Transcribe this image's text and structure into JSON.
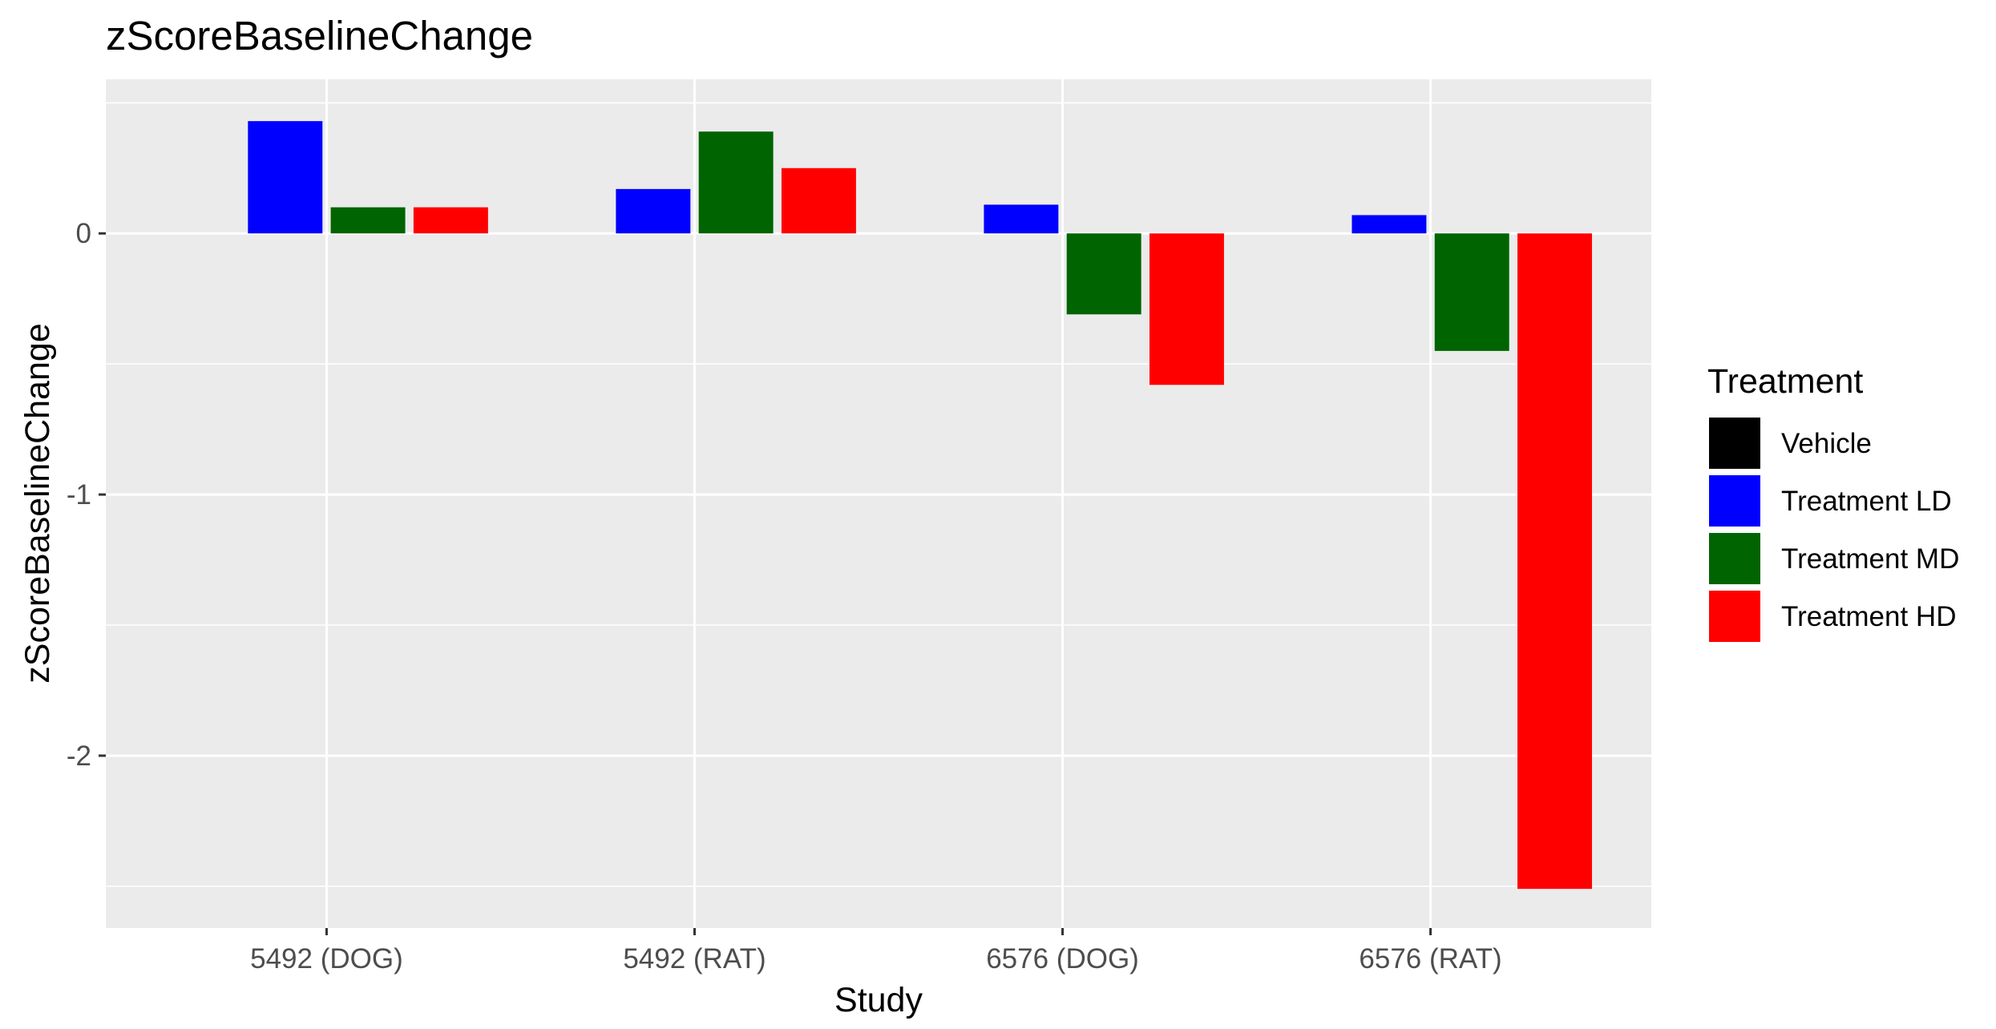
{
  "chart_data": {
    "type": "bar",
    "title": "zScoreBaselineChange",
    "xlabel": "Study",
    "ylabel": "zScoreBaselineChange",
    "categories": [
      "5492 (DOG)",
      "5492 (RAT)",
      "6576 (DOG)",
      "6576 (RAT)"
    ],
    "series": [
      {
        "name": "Vehicle",
        "color": "#000000",
        "values": [
          0,
          0,
          0,
          0
        ]
      },
      {
        "name": "Treatment LD",
        "color": "#0000ff",
        "values": [
          0.43,
          0.17,
          0.11,
          0.07
        ]
      },
      {
        "name": "Treatment MD",
        "color": "#006400",
        "values": [
          0.1,
          0.39,
          -0.31,
          -0.45
        ]
      },
      {
        "name": "Treatment HD",
        "color": "#ff0000",
        "values": [
          0.1,
          0.25,
          -0.58,
          -2.51
        ]
      }
    ],
    "ylim": [
      -2.66,
      0.59
    ],
    "yticks": [
      -2,
      -1,
      0
    ],
    "ytick_labels": [
      "-2",
      "-1",
      "0"
    ],
    "legend_title": "Treatment",
    "legend_position": "right",
    "grid": true,
    "panel_background": "#ebebeb",
    "grid_color": "#ffffff"
  }
}
